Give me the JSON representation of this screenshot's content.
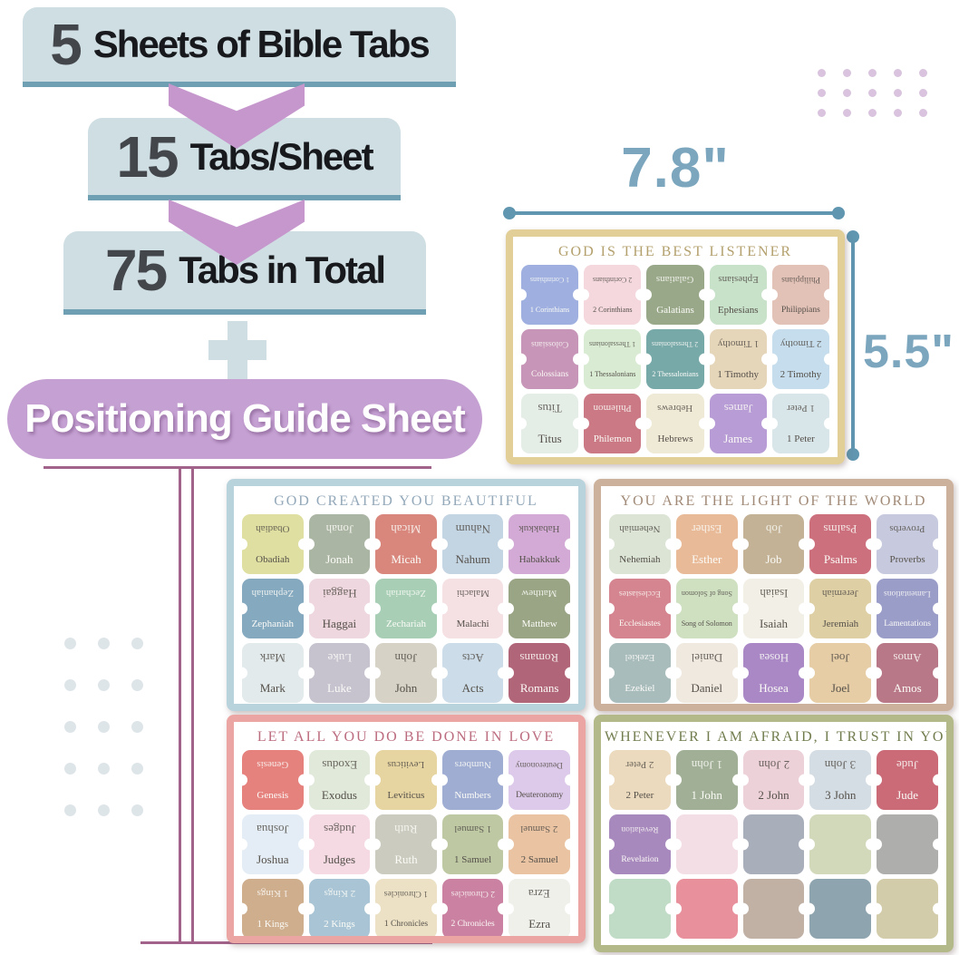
{
  "infographic": {
    "steps": [
      {
        "number": "5",
        "label": "Sheets of Bible Tabs"
      },
      {
        "number": "15",
        "label": "Tabs/Sheet"
      },
      {
        "number": "75",
        "label": "Tabs in Total"
      }
    ],
    "guide_label": "Positioning Guide Sheet"
  },
  "dimensions": {
    "width_label": "7.8\"",
    "height_label": "5.5\""
  },
  "colors": {
    "box_bg": "#cfdee3",
    "box_strip": "#6f9fb2",
    "number_gray": "#43474c",
    "text_black": "#17191c",
    "arrow_purple": "#c697cd",
    "pill_purple": "#c5a0d2",
    "line_plum": "#a2638a",
    "dim_blue": "#7ba6be",
    "dim_line": "#6096b0",
    "dot_left": "#dee5e9",
    "dot_right": "#d9c3de"
  },
  "sheets": [
    {
      "title": "GOD IS THE BEST LISTENER",
      "frame": "#e2cf97",
      "title_color": "#b3a06d",
      "tabs": [
        {
          "label": "1 Corinthians",
          "bg": "#9fb0e0",
          "text": "light"
        },
        {
          "label": "2 Corinthians",
          "bg": "#f4d8dd",
          "text": "dark"
        },
        {
          "label": "Galatians",
          "bg": "#9aa88a",
          "text": "light"
        },
        {
          "label": "Ephesians",
          "bg": "#c8e1c9",
          "text": "dark"
        },
        {
          "label": "Philippians",
          "bg": "#e2c1b6",
          "text": "dark"
        },
        {
          "label": "Colossians",
          "bg": "#c795b7",
          "text": "light"
        },
        {
          "label": "1 Thessalonians",
          "bg": "#d9ecd3",
          "text": "dark"
        },
        {
          "label": "2 Thessalonians",
          "bg": "#78a9a9",
          "text": "light"
        },
        {
          "label": "1 Timothy",
          "bg": "#e5d5b9",
          "text": "dark"
        },
        {
          "label": "2 Timothy",
          "bg": "#c5ddec",
          "text": "dark"
        },
        {
          "label": "Titus",
          "bg": "#e5ede7",
          "text": "dark"
        },
        {
          "label": "Philemon",
          "bg": "#cb7a85",
          "text": "light"
        },
        {
          "label": "Hebrews",
          "bg": "#efead6",
          "text": "dark"
        },
        {
          "label": "James",
          "bg": "#b89cd5",
          "text": "light"
        },
        {
          "label": "1 Peter",
          "bg": "#d9e6e9",
          "text": "dark"
        }
      ]
    },
    {
      "title": "GOD CREATED YOU BEAUTIFUL",
      "frame": "#b9d3dd",
      "title_color": "#93a8b9",
      "tabs": [
        {
          "label": "Obadiah",
          "bg": "#dedfa0",
          "text": "dark"
        },
        {
          "label": "Jonah",
          "bg": "#abb5a3",
          "text": "light"
        },
        {
          "label": "Micah",
          "bg": "#d9877d",
          "text": "light"
        },
        {
          "label": "Nahum",
          "bg": "#c3d4e3",
          "text": "dark"
        },
        {
          "label": "Habakkuk",
          "bg": "#d2aad5",
          "text": "dark"
        },
        {
          "label": "Zephaniah",
          "bg": "#85a9bf",
          "text": "light"
        },
        {
          "label": "Haggai",
          "bg": "#eed7de",
          "text": "dark"
        },
        {
          "label": "Zechariah",
          "bg": "#a8cfb6",
          "text": "light"
        },
        {
          "label": "Malachi",
          "bg": "#f5e0e3",
          "text": "dark"
        },
        {
          "label": "Matthew",
          "bg": "#9aa585",
          "text": "light"
        },
        {
          "label": "Mark",
          "bg": "#e2eaec",
          "text": "dark"
        },
        {
          "label": "Luke",
          "bg": "#c6c3cf",
          "text": "light"
        },
        {
          "label": "John",
          "bg": "#d6d3c6",
          "text": "dark"
        },
        {
          "label": "Acts",
          "bg": "#ccdde9",
          "text": "dark"
        },
        {
          "label": "Romans",
          "bg": "#b16579",
          "text": "light"
        }
      ]
    },
    {
      "title": "YOU ARE THE LIGHT OF THE WORLD",
      "frame": "#ccb29c",
      "title_color": "#a18a77",
      "tabs": [
        {
          "label": "Nehemiah",
          "bg": "#dbe4d5",
          "text": "dark"
        },
        {
          "label": "Esther",
          "bg": "#e9ba98",
          "text": "light"
        },
        {
          "label": "Job",
          "bg": "#c3b295",
          "text": "light"
        },
        {
          "label": "Psalms",
          "bg": "#cd707d",
          "text": "light"
        },
        {
          "label": "Proverbs",
          "bg": "#c7cade",
          "text": "dark"
        },
        {
          "label": "Ecclesiastes",
          "bg": "#d5858f",
          "text": "light"
        },
        {
          "label": "Song of Solomon",
          "bg": "#cfe0c1",
          "text": "dark"
        },
        {
          "label": "Isaiah",
          "bg": "#f2efe6",
          "text": "dark"
        },
        {
          "label": "Jeremiah",
          "bg": "#decfa5",
          "text": "dark"
        },
        {
          "label": "Lamentations",
          "bg": "#9b9dc9",
          "text": "light"
        },
        {
          "label": "Ezekiel",
          "bg": "#a9bcbc",
          "text": "light"
        },
        {
          "label": "Daniel",
          "bg": "#efe9e0",
          "text": "dark"
        },
        {
          "label": "Hosea",
          "bg": "#a988c5",
          "text": "light"
        },
        {
          "label": "Joel",
          "bg": "#e6cda5",
          "text": "dark"
        },
        {
          "label": "Amos",
          "bg": "#b97888",
          "text": "light"
        }
      ]
    },
    {
      "title": "LET ALL YOU DO BE DONE IN LOVE",
      "frame": "#eba6a4",
      "title_color": "#bc6c7f",
      "tabs": [
        {
          "label": "Genesis",
          "bg": "#e6827e",
          "text": "light"
        },
        {
          "label": "Exodus",
          "bg": "#e0e9da",
          "text": "dark"
        },
        {
          "label": "Leviticus",
          "bg": "#e6d4a1",
          "text": "dark"
        },
        {
          "label": "Numbers",
          "bg": "#9fadd2",
          "text": "light"
        },
        {
          "label": "Deuteronomy",
          "bg": "#ddc9e9",
          "text": "dark"
        },
        {
          "label": "Joshua",
          "bg": "#e4edf5",
          "text": "dark"
        },
        {
          "label": "Judges",
          "bg": "#f5dae4",
          "text": "dark"
        },
        {
          "label": "Ruth",
          "bg": "#cbcbbf",
          "text": "light"
        },
        {
          "label": "1 Samuel",
          "bg": "#bec9a4",
          "text": "dark"
        },
        {
          "label": "2 Samuel",
          "bg": "#e9c3a2",
          "text": "dark"
        },
        {
          "label": "1 Kings",
          "bg": "#cfae8e",
          "text": "light"
        },
        {
          "label": "2 Kings",
          "bg": "#a9c5d5",
          "text": "light"
        },
        {
          "label": "1 Chronicles",
          "bg": "#ece1c5",
          "text": "dark"
        },
        {
          "label": "2 Chronicles",
          "bg": "#cb81a1",
          "text": "light"
        },
        {
          "label": "Ezra",
          "bg": "#eef0e9",
          "text": "dark"
        }
      ]
    },
    {
      "title": "WHENEVER I AM AFRAID, I TRUST IN YOU",
      "frame": "#b4b989",
      "title_color": "#717d4e",
      "tabs": [
        {
          "label": "2 Peter",
          "bg": "#ebdabd",
          "text": "dark"
        },
        {
          "label": "1 John",
          "bg": "#a0af95",
          "text": "light"
        },
        {
          "label": "2 John",
          "bg": "#edd1d9",
          "text": "dark"
        },
        {
          "label": "3 John",
          "bg": "#d4dde3",
          "text": "dark"
        },
        {
          "label": "Jude",
          "bg": "#ca6b77",
          "text": "light"
        },
        {
          "label": "Revelation",
          "bg": "#a889bd",
          "text": "light"
        },
        {
          "label": "",
          "bg": "#f4dee6",
          "text": "dark"
        },
        {
          "label": "",
          "bg": "#a9aebb",
          "text": "dark"
        },
        {
          "label": "",
          "bg": "#d2d9bb",
          "text": "dark"
        },
        {
          "label": "",
          "bg": "#aeaeac",
          "text": "dark"
        },
        {
          "label": "",
          "bg": "#c0dcc6",
          "text": "dark"
        },
        {
          "label": "",
          "bg": "#e8919d",
          "text": "dark"
        },
        {
          "label": "",
          "bg": "#c1b1a5",
          "text": "dark"
        },
        {
          "label": "",
          "bg": "#8ea4af",
          "text": "dark"
        },
        {
          "label": "",
          "bg": "#d3ccab",
          "text": "dark"
        }
      ]
    }
  ]
}
